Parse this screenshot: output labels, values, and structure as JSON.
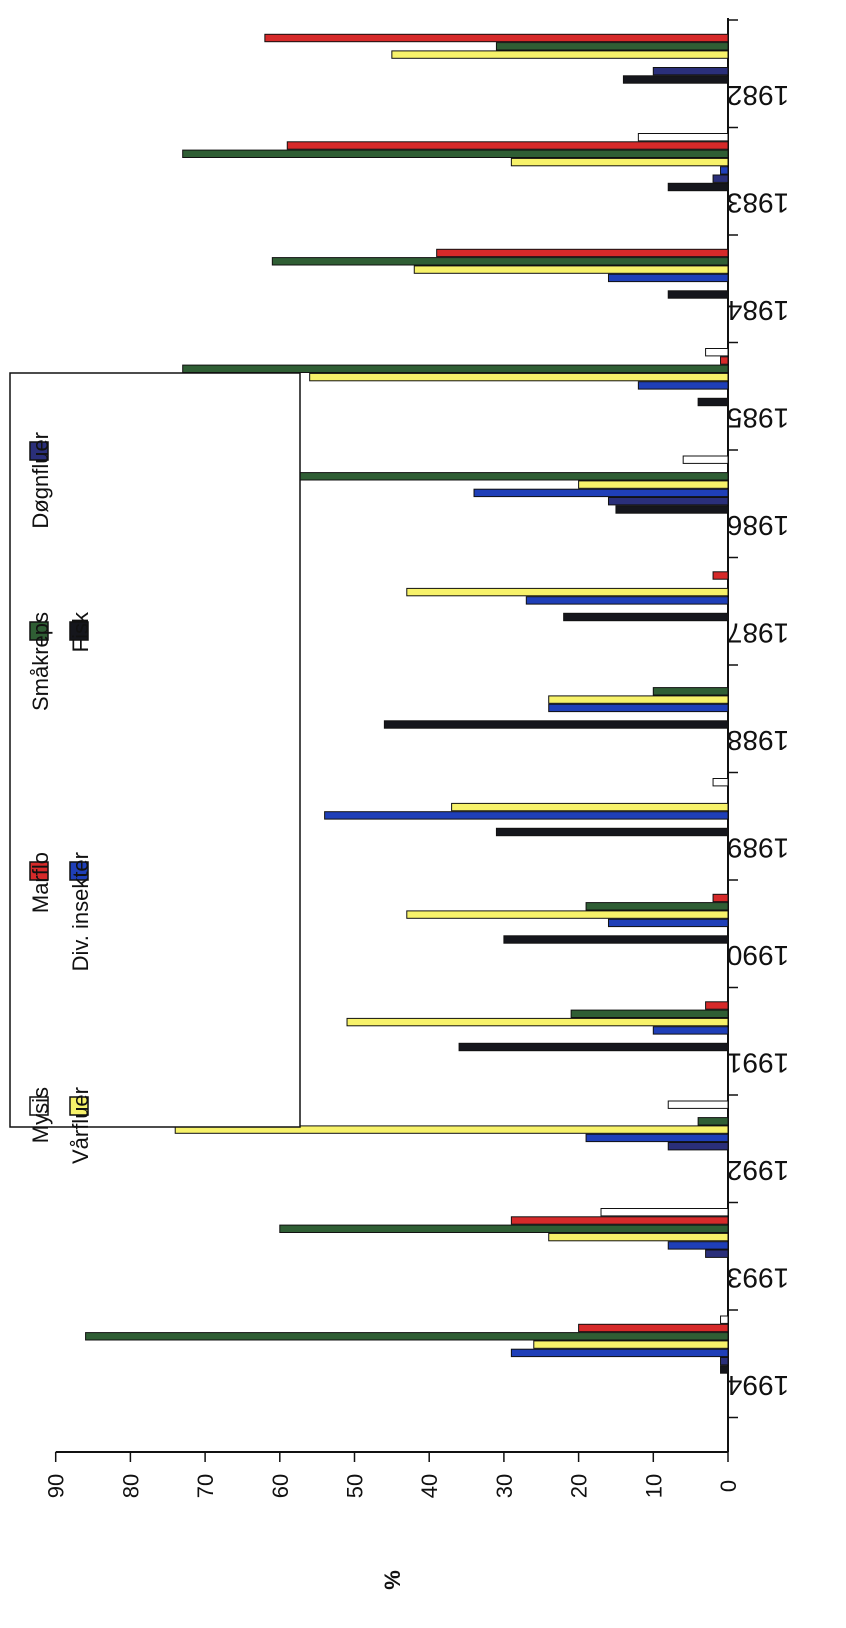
{
  "chart_data": {
    "type": "bar",
    "orientation": "horizontal-rotated",
    "title": "",
    "ylabel": "%",
    "xlabel": "",
    "ylim": [
      0,
      90
    ],
    "ytick_labels": [
      "0",
      "10",
      "20",
      "30",
      "40",
      "50",
      "60",
      "70",
      "80",
      "90"
    ],
    "grid": false,
    "legend_position": "top",
    "categories": [
      "1982",
      "1983",
      "1984",
      "1985",
      "1986",
      "1987",
      "1988",
      "1989",
      "1990",
      "1991",
      "1992",
      "1993",
      "1994"
    ],
    "series": [
      {
        "name": "Mysis",
        "color": "#ffffff",
        "values": [
          0,
          12,
          0,
          3,
          6,
          0,
          0,
          2,
          0,
          0,
          8,
          17,
          1
        ]
      },
      {
        "name": "Marflo",
        "color": "#d62a2a",
        "values": [
          62,
          59,
          39,
          1,
          0,
          2,
          0,
          0,
          2,
          3,
          0,
          29,
          20
        ]
      },
      {
        "name": "Småkreps",
        "color": "#2f5e34",
        "values": [
          31,
          73,
          61,
          73,
          81,
          0,
          10,
          0,
          19,
          21,
          4,
          60,
          86
        ]
      },
      {
        "name": "Vårfluer",
        "color": "#f7f26a",
        "values": [
          45,
          29,
          42,
          56,
          20,
          43,
          24,
          37,
          43,
          51,
          74,
          24,
          26
        ]
      },
      {
        "name": "Div. insekter",
        "color": "#1f3fb8",
        "values": [
          0,
          1,
          16,
          12,
          34,
          27,
          24,
          54,
          16,
          10,
          19,
          8,
          29
        ]
      },
      {
        "name": "Døgnfluer",
        "color": "#2a2f7a",
        "values": [
          10,
          2,
          0,
          0,
          16,
          0,
          0,
          0,
          0,
          0,
          8,
          3,
          1
        ]
      },
      {
        "name": "Fisk",
        "color": "#15161c",
        "values": [
          14,
          8,
          8,
          4,
          15,
          22,
          46,
          31,
          30,
          36,
          0,
          0,
          1
        ]
      }
    ]
  }
}
